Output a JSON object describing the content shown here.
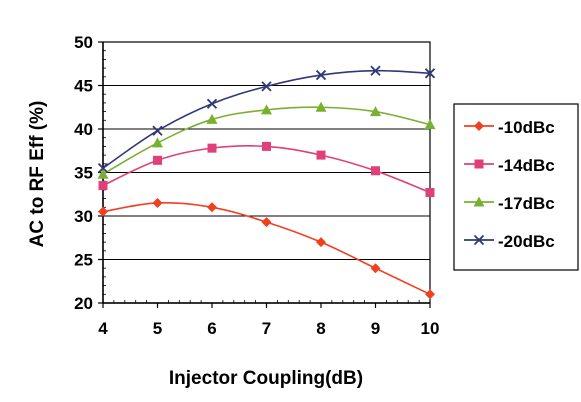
{
  "chart_data": {
    "type": "line",
    "title": "",
    "xlabel": "Injector Coupling(dB)",
    "ylabel": "AC to RF Eff (%)",
    "x": [
      4,
      5,
      6,
      7,
      8,
      9,
      10
    ],
    "xlim": [
      4,
      10
    ],
    "ylim": [
      20,
      50
    ],
    "yticks": [
      20,
      25,
      30,
      35,
      40,
      45,
      50
    ],
    "xticks": [
      4,
      5,
      6,
      7,
      8,
      9,
      10
    ],
    "grid": "horizontal",
    "legend_position": "right",
    "series": [
      {
        "name": "-10dBc",
        "color": "#f04020",
        "marker": "diamond",
        "values": [
          30.5,
          31.5,
          31.0,
          29.3,
          27.0,
          24.0,
          21.0
        ]
      },
      {
        "name": "-14dBc",
        "color": "#e0407a",
        "marker": "square",
        "values": [
          33.5,
          36.4,
          37.8,
          38.0,
          37.0,
          35.2,
          32.7
        ]
      },
      {
        "name": "-17dBc",
        "color": "#7ab030",
        "marker": "triangle",
        "values": [
          34.8,
          38.4,
          41.1,
          42.2,
          42.5,
          42.0,
          40.5
        ]
      },
      {
        "name": "-20dBc",
        "color": "#303878",
        "marker": "x",
        "values": [
          35.5,
          39.8,
          42.9,
          44.9,
          46.2,
          46.7,
          46.4
        ]
      }
    ]
  }
}
